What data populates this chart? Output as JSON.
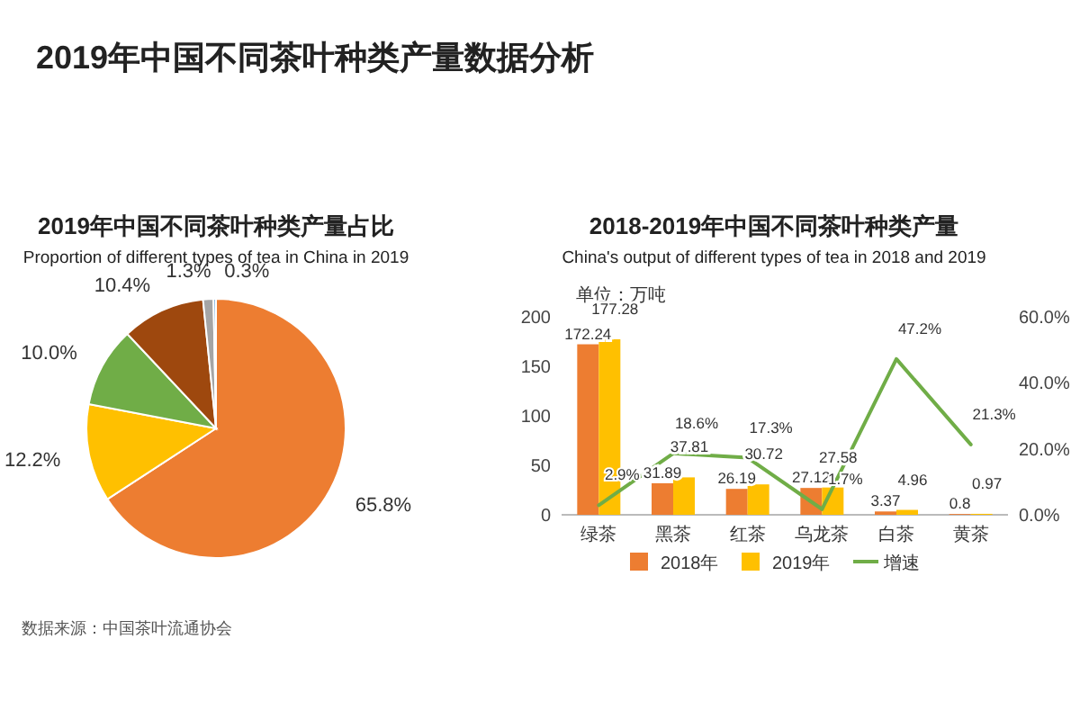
{
  "chart_data": [
    {
      "type": "pie",
      "title": "2019年中国不同茶叶种类产量占比",
      "subtitle": "Proportion of different types of tea in China in 2019",
      "annotations": [
        "2019年中国不同茶叶种类产量数据分析",
        "数据来源：中国茶叶流通协会"
      ],
      "categories": [
        null,
        null,
        null,
        null,
        null,
        null
      ],
      "values": [
        65.8,
        12.2,
        10.0,
        10.4,
        1.3,
        0.3
      ],
      "value_labels": [
        "65.8%",
        "12.2%",
        "10.0%",
        "10.4%",
        "1.3%",
        "0.3%"
      ],
      "colors": [
        "#ed7d31",
        "#ffc000",
        "#70ad47",
        "#9e480e",
        "#a5a5a5",
        "#5b9bd5"
      ]
    },
    {
      "type": "bar",
      "title": "2018-2019年中国不同茶叶种类产量",
      "subtitle": "China's output of different types of tea in 2018 and 2019",
      "annotations": [
        "单位：万吨"
      ],
      "categories": [
        "绿茶",
        "黑茶",
        "红茶",
        "乌龙茶",
        "白茶",
        "黄茶"
      ],
      "series": [
        {
          "name": "2018年",
          "color": "#ed7d31",
          "values": [
            172.24,
            31.89,
            26.19,
            27.12,
            3.37,
            0.8
          ]
        },
        {
          "name": "2019年",
          "color": "#ffc000",
          "values": [
            177.28,
            37.81,
            30.72,
            27.58,
            4.96,
            0.97
          ]
        },
        {
          "name": "增速",
          "type": "line",
          "axis": "y2",
          "color": "#70ad47",
          "values": [
            2.9,
            18.6,
            17.3,
            1.7,
            47.2,
            21.3
          ],
          "value_labels": [
            "2.9%",
            "18.6%",
            "17.3%",
            "1.7%",
            "47.2%",
            "21.3%"
          ]
        }
      ],
      "ylim": [
        0,
        200
      ],
      "yticks": [
        0,
        50,
        100,
        150,
        200
      ],
      "y2lim": [
        0,
        60
      ],
      "y2ticks": [
        {
          "value": 0,
          "label": "0.0%"
        },
        {
          "value": 20,
          "label": "20.0%"
        },
        {
          "value": 40,
          "label": "40.0%"
        },
        {
          "value": 60,
          "label": "60.0%"
        }
      ],
      "data_labels": true,
      "legend": "bottom",
      "marker": "none"
    }
  ]
}
